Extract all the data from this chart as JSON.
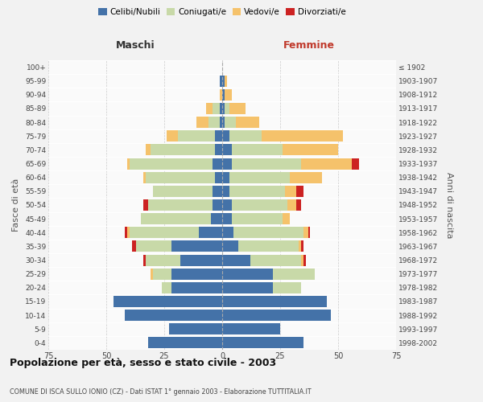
{
  "age_groups": [
    "0-4",
    "5-9",
    "10-14",
    "15-19",
    "20-24",
    "25-29",
    "30-34",
    "35-39",
    "40-44",
    "45-49",
    "50-54",
    "55-59",
    "60-64",
    "65-69",
    "70-74",
    "75-79",
    "80-84",
    "85-89",
    "90-94",
    "95-99",
    "100+"
  ],
  "birth_years": [
    "1998-2002",
    "1993-1997",
    "1988-1992",
    "1983-1987",
    "1978-1982",
    "1973-1977",
    "1968-1972",
    "1963-1967",
    "1958-1962",
    "1953-1957",
    "1948-1952",
    "1943-1947",
    "1938-1942",
    "1933-1937",
    "1928-1932",
    "1923-1927",
    "1918-1922",
    "1913-1917",
    "1908-1912",
    "1903-1907",
    "≤ 1902"
  ],
  "maschi": {
    "celibi": [
      32,
      23,
      42,
      47,
      22,
      22,
      18,
      22,
      10,
      5,
      4,
      4,
      3,
      4,
      3,
      3,
      1,
      1,
      0,
      1,
      0
    ],
    "coniugati": [
      0,
      0,
      0,
      0,
      4,
      8,
      15,
      15,
      30,
      30,
      28,
      26,
      30,
      36,
      28,
      16,
      5,
      3,
      0,
      0,
      0
    ],
    "vedovi": [
      0,
      0,
      0,
      0,
      0,
      1,
      0,
      0,
      1,
      0,
      0,
      0,
      1,
      1,
      2,
      5,
      5,
      3,
      1,
      0,
      0
    ],
    "divorziati": [
      0,
      0,
      0,
      0,
      0,
      0,
      1,
      2,
      1,
      0,
      2,
      0,
      0,
      0,
      0,
      0,
      0,
      0,
      0,
      0,
      0
    ]
  },
  "femmine": {
    "nubili": [
      35,
      25,
      47,
      45,
      22,
      22,
      12,
      7,
      5,
      4,
      4,
      3,
      3,
      4,
      4,
      3,
      1,
      1,
      1,
      1,
      0
    ],
    "coniugate": [
      0,
      0,
      0,
      0,
      12,
      18,
      22,
      26,
      30,
      22,
      24,
      24,
      26,
      30,
      22,
      14,
      5,
      2,
      0,
      0,
      0
    ],
    "vedove": [
      0,
      0,
      0,
      0,
      0,
      0,
      1,
      1,
      2,
      3,
      4,
      5,
      14,
      22,
      24,
      35,
      10,
      7,
      3,
      1,
      0
    ],
    "divorziate": [
      0,
      0,
      0,
      0,
      0,
      0,
      1,
      1,
      1,
      0,
      2,
      3,
      0,
      3,
      0,
      0,
      0,
      0,
      0,
      0,
      0
    ]
  },
  "colors": {
    "celibi": "#4472a8",
    "coniugati": "#c8d9a8",
    "vedovi": "#f5c26b",
    "divorziati": "#cc2222"
  },
  "xlim": 75,
  "title": "Popolazione per età, sesso e stato civile - 2003",
  "subtitle": "COMUNE DI ISCA SULLO IONIO (CZ) - Dati ISTAT 1° gennaio 2003 - Elaborazione TUTTITALIA.IT",
  "ylabel_left": "Fasce di età",
  "ylabel_right": "Anni di nascita",
  "xlabel_maschi": "Maschi",
  "xlabel_femmine": "Femmine",
  "legend_labels": [
    "Celibi/Nubili",
    "Coniugati/e",
    "Vedovi/e",
    "Divorziati/e"
  ],
  "bg_color": "#f2f2f2",
  "plot_bg": "#fafafa"
}
